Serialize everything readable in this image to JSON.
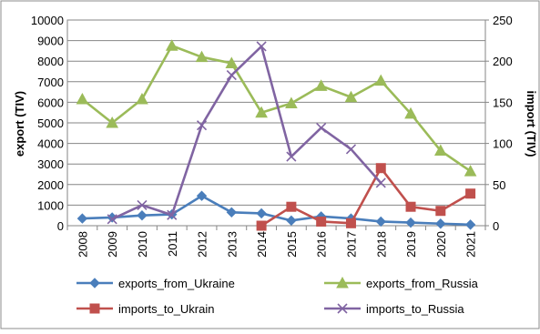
{
  "chart_data": {
    "type": "line",
    "title": "",
    "xlabel": "",
    "ylabel": "export (TIV)",
    "y2label": "import (TIV)",
    "ylim": [
      0,
      10000
    ],
    "y2lim": [
      0,
      250
    ],
    "grid": true,
    "legend_position": "bottom",
    "categories": [
      "2008",
      "2009",
      "2010",
      "2011",
      "2012",
      "2013",
      "2014",
      "2015",
      "2016",
      "2017",
      "2018",
      "2019",
      "2020",
      "2021"
    ],
    "y_ticks": [
      "0",
      "1000",
      "2000",
      "3000",
      "4000",
      "5000",
      "6000",
      "7000",
      "8000",
      "9000",
      "10000"
    ],
    "y2_ticks": [
      "0",
      "50",
      "100",
      "150",
      "200",
      "250"
    ],
    "series": [
      {
        "name": "exports_from_Ukraine",
        "axis": "left",
        "color": "#4a7ebb",
        "marker": "diamond",
        "values": [
          350,
          400,
          500,
          550,
          1450,
          650,
          600,
          250,
          450,
          350,
          200,
          150,
          100,
          50
        ]
      },
      {
        "name": "exports_from_Russia",
        "axis": "left",
        "color": "#9bbb59",
        "marker": "triangle",
        "values": [
          6150,
          5000,
          6150,
          8750,
          8200,
          7900,
          5500,
          5950,
          6800,
          6250,
          7050,
          5450,
          3650,
          2650
        ]
      },
      {
        "name": "imports_to_Ukrain",
        "axis": "right",
        "color": "#c0504d",
        "marker": "square",
        "values": [
          null,
          null,
          null,
          null,
          null,
          null,
          0,
          23,
          5,
          3,
          70,
          23,
          18,
          39
        ]
      },
      {
        "name": "imports_to_Russia",
        "axis": "right",
        "color": "#8064a2",
        "marker": "x",
        "values": [
          null,
          8,
          25,
          13,
          122,
          183,
          218,
          84,
          119,
          93,
          52,
          null,
          null,
          null
        ]
      }
    ]
  }
}
